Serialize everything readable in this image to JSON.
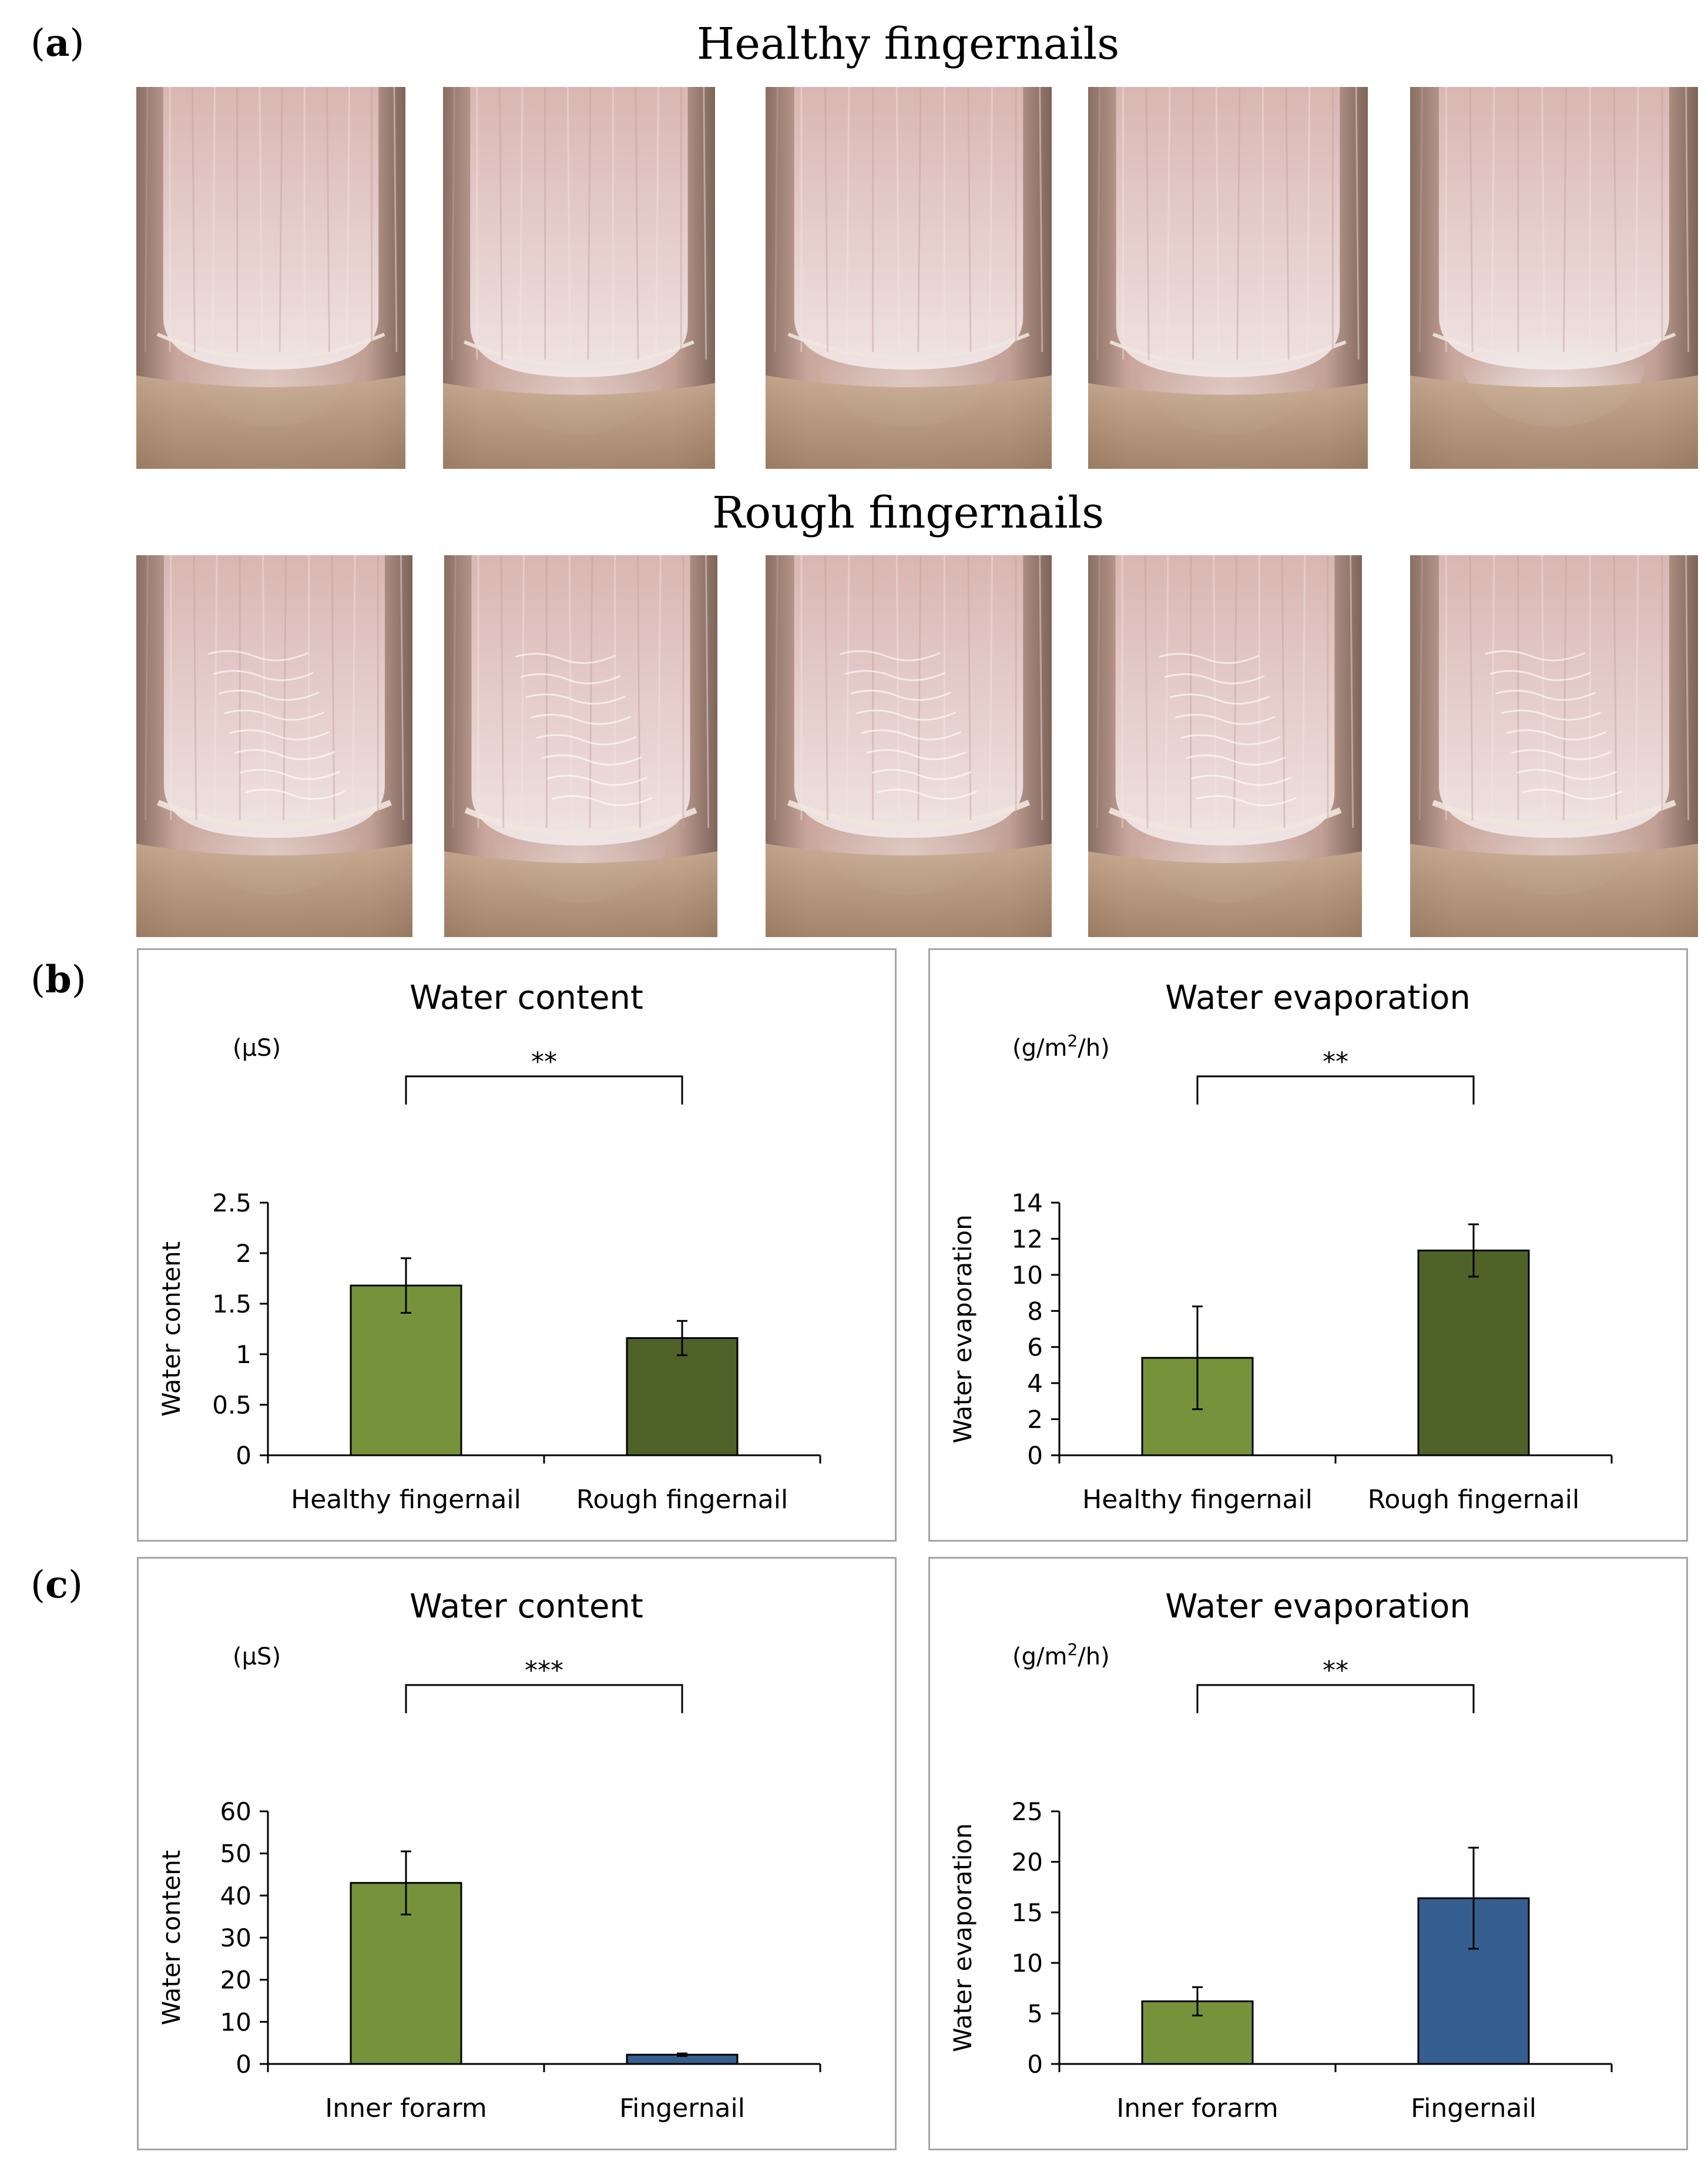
{
  "panel_a": {
    "label_open": "(",
    "label_letter": "a",
    "label_close": ")",
    "healthy_title": "Healthy fingernails",
    "rough_title": "Rough fingernails",
    "healthy_photos": [
      "healthy-nail-1",
      "healthy-nail-2",
      "healthy-nail-3",
      "healthy-nail-4",
      "healthy-nail-5"
    ],
    "rough_photos": [
      "rough-nail-1",
      "rough-nail-2",
      "rough-nail-3",
      "rough-nail-4",
      "rough-nail-5"
    ]
  },
  "panel_b": {
    "label_open": "(",
    "label_letter": "b",
    "label_close": ")"
  },
  "panel_c": {
    "label_open": "(",
    "label_letter": "c",
    "label_close": ")"
  },
  "colors": {
    "light_green": "#76933c",
    "dark_green": "#4f6228",
    "blue": "#355f91",
    "axis": "#000000",
    "frame": "#a6a6a6"
  },
  "chart_data": [
    {
      "id": "b-water-content",
      "type": "bar",
      "title": "Water content",
      "unit": "(μS)",
      "ylabel": "Water content",
      "xlabel": "",
      "categories": [
        "Healthy fingernail",
        "Rough fingernail"
      ],
      "values": [
        1.68,
        1.16
      ],
      "errors": [
        0.27,
        0.17
      ],
      "ylim": [
        0,
        2.5
      ],
      "yticks": [
        0,
        0.5,
        1,
        1.5,
        2,
        2.5
      ],
      "ytick_labels": [
        "0",
        "0.5",
        "1",
        "1.5",
        "2",
        "2.5"
      ],
      "significance": "**",
      "bar_colors": [
        "#76933c",
        "#4f6228"
      ]
    },
    {
      "id": "b-water-evaporation",
      "type": "bar",
      "title": "Water evaporation",
      "unit_base": "(g/m",
      "unit_sup": "2",
      "unit_tail": "/h)",
      "ylabel": "Water evaporation",
      "xlabel": "",
      "categories": [
        "Healthy fingernail",
        "Rough fingernail"
      ],
      "values": [
        5.4,
        11.35
      ],
      "errors": [
        2.85,
        1.45
      ],
      "ylim": [
        0,
        14
      ],
      "yticks": [
        0,
        2,
        4,
        6,
        8,
        10,
        12,
        14
      ],
      "ytick_labels": [
        "0",
        "2",
        "4",
        "6",
        "8",
        "10",
        "12",
        "14"
      ],
      "significance": "**",
      "bar_colors": [
        "#76933c",
        "#4f6228"
      ]
    },
    {
      "id": "c-water-content",
      "type": "bar",
      "title": "Water content",
      "unit": "(μS)",
      "ylabel": "Water content",
      "xlabel": "",
      "categories": [
        "Inner forarm",
        "Fingernail"
      ],
      "values": [
        43.0,
        2.2
      ],
      "errors": [
        7.5,
        0.3
      ],
      "ylim": [
        0,
        60
      ],
      "yticks": [
        0,
        10,
        20,
        30,
        40,
        50,
        60
      ],
      "ytick_labels": [
        "0",
        "10",
        "20",
        "30",
        "40",
        "50",
        "60"
      ],
      "significance": "***",
      "bar_colors": [
        "#76933c",
        "#355f91"
      ]
    },
    {
      "id": "c-water-evaporation",
      "type": "bar",
      "title": "Water evaporation",
      "unit_base": "(g/m",
      "unit_sup": "2",
      "unit_tail": "/h)",
      "ylabel": "Water evaporation",
      "xlabel": "",
      "categories": [
        "Inner forarm",
        "Fingernail"
      ],
      "values": [
        6.2,
        16.4
      ],
      "errors": [
        1.4,
        5.0
      ],
      "ylim": [
        0,
        25
      ],
      "yticks": [
        0,
        5,
        10,
        15,
        20,
        25
      ],
      "ytick_labels": [
        "0",
        "5",
        "10",
        "15",
        "20",
        "25"
      ],
      "significance": "**",
      "bar_colors": [
        "#76933c",
        "#355f91"
      ]
    }
  ]
}
